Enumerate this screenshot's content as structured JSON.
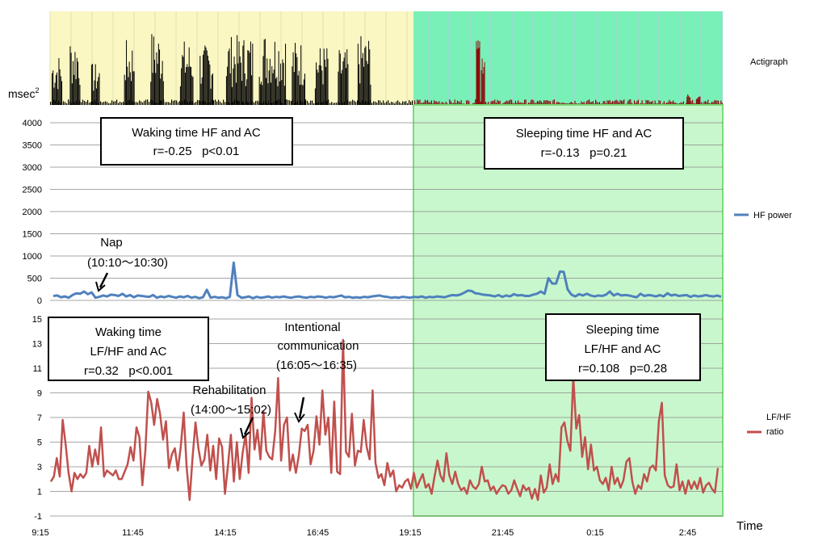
{
  "chart_data": [
    {
      "type": "bar",
      "title": "",
      "legend": "Actigraph",
      "ylabel": "msec",
      "ylabel_superscript": "2",
      "colors": {
        "waking_bg": "#fbf7c3",
        "sleeping_bg": "#79f0b8",
        "waking_bars": "#000000",
        "sleeping_bars": "#8b0d0d"
      },
      "waking_bursts": [
        {
          "x": [
            9.3,
            9.6
          ],
          "level": 0.55
        },
        {
          "x": [
            9.85,
            10.15
          ],
          "level": 0.75
        },
        {
          "x": [
            10.5,
            10.75
          ],
          "level": 0.45
        },
        {
          "x": [
            11.5,
            11.8
          ],
          "level": 0.7
        },
        {
          "x": [
            12.3,
            12.7
          ],
          "level": 0.8
        },
        {
          "x": [
            13.2,
            13.6
          ],
          "level": 0.7
        },
        {
          "x": [
            13.8,
            14.2
          ],
          "level": 0.65
        },
        {
          "x": [
            14.6,
            15.4
          ],
          "level": 0.75
        },
        {
          "x": [
            15.6,
            16.4
          ],
          "level": 0.8
        },
        {
          "x": [
            16.6,
            17.0
          ],
          "level": 0.7
        },
        {
          "x": [
            17.3,
            17.7
          ],
          "level": 0.65
        },
        {
          "x": [
            18.0,
            18.3
          ],
          "level": 0.6
        },
        {
          "x": [
            18.6,
            19.0
          ],
          "level": 0.75
        }
      ],
      "sleeping_spikes": [
        {
          "x": 22.2,
          "level": 0.7
        },
        {
          "x": 22.35,
          "level": 0.55
        },
        {
          "x": 28.6,
          "level": 0.12
        },
        {
          "x": 28.9,
          "level": 0.1
        }
      ]
    },
    {
      "type": "line",
      "series": [
        {
          "name": "HF power",
          "color": "#4f81bd"
        }
      ],
      "x_start": "9:15",
      "ylim": [
        0,
        4000
      ],
      "yticks": [
        "4000",
        "3500",
        "3000",
        "2500",
        "2000",
        "1500",
        "1000",
        "500",
        "0"
      ],
      "ytick_values": [
        4000,
        3500,
        3000,
        2500,
        2000,
        1500,
        1000,
        500,
        0
      ],
      "hf_values": [
        100,
        110,
        70,
        90,
        60,
        120,
        160,
        150,
        200,
        140,
        180,
        60,
        80,
        110,
        90,
        130,
        120,
        100,
        150,
        90,
        120,
        70,
        110,
        100,
        90,
        80,
        120,
        60,
        90,
        70,
        100,
        80,
        60,
        90,
        70,
        100,
        60,
        80,
        50,
        70,
        240,
        60,
        80,
        60,
        70,
        50,
        80,
        850,
        120,
        60,
        70,
        90,
        50,
        80,
        60,
        70,
        90,
        60,
        80,
        70,
        90,
        70,
        60,
        80,
        90,
        70,
        60,
        80,
        70,
        90,
        80,
        60,
        80,
        70,
        90,
        110,
        70,
        80,
        60,
        70,
        60,
        80,
        70,
        90,
        100,
        110,
        90,
        80,
        60,
        70,
        60,
        80,
        70,
        60,
        80,
        70,
        90,
        60,
        80,
        70,
        90,
        80,
        70,
        100,
        120,
        110,
        130,
        170,
        220,
        210,
        160,
        150,
        130,
        120,
        110,
        90,
        120,
        80,
        110,
        90,
        140,
        110,
        120,
        100,
        100,
        130,
        150,
        200,
        150,
        500,
        380,
        380,
        650,
        640,
        250,
        130,
        90,
        140,
        110,
        150,
        110,
        90,
        110,
        100,
        130,
        200,
        110,
        150,
        110,
        120,
        110,
        90,
        70,
        150,
        100,
        120,
        110,
        90,
        120,
        90,
        160,
        110,
        130,
        100,
        110,
        120,
        80,
        110,
        90,
        100,
        120,
        100,
        90,
        110,
        80
      ],
      "annotations": [
        {
          "text_lines": [
            "Nap",
            "(10:10～10:30)"
          ]
        }
      ],
      "boxes": [
        {
          "lines": [
            "Waking time HF and AC",
            "r=-0.25   p<0.01"
          ]
        },
        {
          "lines": [
            "Sleeping time HF and AC",
            "r=-0.13   p=0.21"
          ]
        }
      ]
    },
    {
      "type": "line",
      "series": [
        {
          "name": "LF/HF ratio",
          "legend_lines": [
            "LF/HF",
            "ratio"
          ],
          "color": "#c0504d"
        }
      ],
      "ylim": [
        -1,
        15
      ],
      "yticks": [
        "15",
        "13",
        "11",
        "9",
        "7",
        "5",
        "3",
        "1",
        "-1"
      ],
      "ytick_values": [
        15,
        13,
        11,
        9,
        7,
        5,
        3,
        1,
        -1
      ],
      "x_categories": [
        "9:15",
        "11:45",
        "14:15",
        "16:45",
        "19:15",
        "21:45",
        "0:15",
        "2:45"
      ],
      "xlabel": "Time",
      "lfhf_values": [
        1.8,
        2.2,
        3.7,
        2.2,
        6.8,
        4.8,
        2.5,
        1.0,
        2.5,
        2.0,
        2.4,
        2.1,
        2.5,
        4.7,
        3.0,
        4.4,
        3.2,
        6.2,
        2.2,
        2.7,
        2.5,
        2.3,
        2.7,
        2.0,
        2.0,
        2.6,
        3.2,
        4.6,
        3.5,
        6.2,
        5.4,
        1.5,
        4.3,
        9.1,
        8.2,
        6.4,
        8.5,
        7.3,
        5.2,
        6.7,
        2.9,
        4.0,
        4.5,
        2.7,
        4.6,
        7.4,
        3.0,
        0.3,
        3.7,
        6.6,
        4.5,
        3.1,
        3.6,
        5.6,
        2.7,
        4.7,
        2.0,
        5.3,
        4.6,
        0.8,
        3.1,
        5.6,
        1.8,
        5.0,
        2.0,
        4.2,
        5.6,
        2.5,
        8.6,
        4.4,
        6.0,
        3.6,
        7.5,
        4.3,
        3.8,
        3.6,
        5.9,
        10.2,
        3.5,
        6.4,
        7.0,
        2.7,
        4.0,
        2.5,
        3.9,
        6.1,
        5.9,
        6.4,
        3.2,
        4.3,
        7.1,
        4.8,
        9.2,
        5.6,
        7.0,
        2.5,
        8.3,
        2.6,
        2.4,
        13.3,
        4.2,
        3.8,
        7.3,
        3.1,
        4.3,
        4.2,
        6.8,
        4.6,
        3.6,
        9.2,
        3.3,
        2.1,
        2.4,
        1.5,
        3.3,
        2.2,
        2.7,
        1.0,
        1.5,
        1.3,
        1.8,
        2.0,
        1.2,
        2.5,
        1.3,
        1.9,
        2.4,
        1.3,
        1.6,
        0.8,
        2.2,
        3.5,
        2.3,
        1.8,
        4.1,
        2.3,
        1.6,
        2.6,
        1.6,
        1.1,
        1.3,
        0.8,
        1.9,
        1.4,
        1.2,
        1.6,
        3.0,
        1.8,
        1.9,
        1.1,
        1.4,
        0.8,
        1.2,
        1.5,
        1.4,
        0.8,
        1.1,
        1.9,
        1.2,
        0.6,
        1.5,
        1.1,
        1.3,
        0.4,
        1.2,
        0.3,
        2.3,
        0.9,
        1.3,
        3.2,
        1.6,
        2.4,
        1.8,
        6.2,
        6.6,
        5.1,
        4.3,
        10.3,
        6.1,
        7.2,
        3.8,
        5.4,
        2.8,
        4.8,
        2.7,
        3.0,
        1.9,
        1.6,
        2.1,
        1.1,
        3.0,
        1.6,
        2.1,
        1.3,
        1.9,
        3.4,
        3.7,
        1.8,
        0.8,
        1.5,
        1.2,
        2.4,
        1.8,
        2.9,
        3.1,
        2.7,
        6.7,
        8.2,
        2.3,
        1.5,
        1.3,
        1.4,
        3.2,
        1.1,
        1.8,
        0.8,
        1.9,
        1.2,
        1.8,
        1.2,
        2.1,
        0.9,
        1.5,
        1.7,
        1.2,
        0.9,
        2.9
      ],
      "annotations": [
        {
          "text_lines": [
            "Rehabilitation",
            "(14:00～15:02)"
          ]
        },
        {
          "text_lines": [
            "Intentional",
            "communication",
            "(16:05～16:35)"
          ]
        }
      ],
      "boxes": [
        {
          "lines": [
            "Waking time",
            "LF/HF and AC",
            "r=0.32   p<0.001"
          ]
        },
        {
          "lines": [
            "Sleeping time",
            "LF/HF and AC",
            "r=0.108   p=0.28"
          ]
        }
      ]
    }
  ]
}
